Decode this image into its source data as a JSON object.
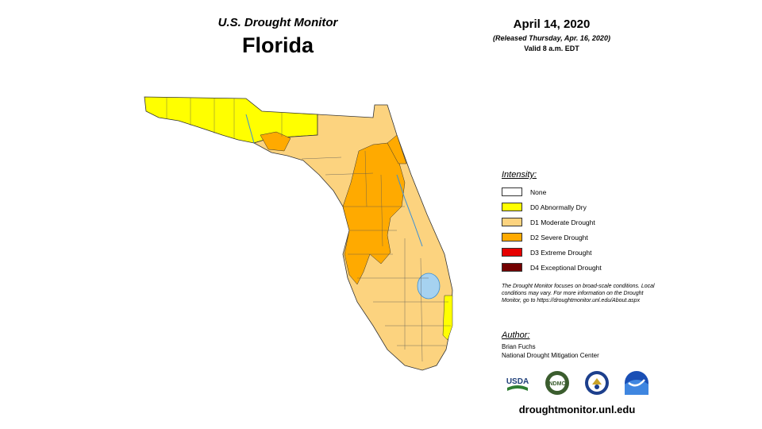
{
  "header": {
    "title": "U.S. Drought Monitor",
    "state": "Florida",
    "date": "April 14, 2020",
    "released": "(Released Thursday, Apr. 16, 2020)",
    "valid": "Valid 8 a.m. EDT"
  },
  "legend": {
    "heading": "Intensity:",
    "items": [
      {
        "label": "None",
        "color": "#ffffff"
      },
      {
        "label": "D0 Abnormally Dry",
        "color": "#ffff00"
      },
      {
        "label": "D1 Moderate Drought",
        "color": "#fcd37f"
      },
      {
        "label": "D2 Severe Drought",
        "color": "#ffaa00"
      },
      {
        "label": "D3 Extreme Drought",
        "color": "#e60000"
      },
      {
        "label": "D4 Exceptional Drought",
        "color": "#730000"
      }
    ]
  },
  "note": "The Drought Monitor focuses on broad-scale conditions. Local conditions may vary. For more information on the Drought Monitor, go to https://droughtmonitor.unl.edu/About.aspx",
  "author": {
    "heading": "Author:",
    "name": "Brian Fuchs",
    "org": "National Drought Mitigation Center"
  },
  "logos": {
    "usda": "USDA",
    "ndmc": "NDMC"
  },
  "site": "droughtmonitor.unl.edu",
  "map_regions": [
    {
      "region": "Panhandle",
      "category": "D0 Abnormally Dry"
    },
    {
      "region": "Peninsula",
      "category": "D1 Moderate Drought"
    },
    {
      "region": "Central Florida",
      "category": "D2 Severe Drought"
    },
    {
      "region": "Southeast coast",
      "category": "D0 Abnormally Dry"
    }
  ],
  "colors": {
    "border": "#333333",
    "water": "#a6d2f0",
    "river": "#3a8fd6"
  }
}
